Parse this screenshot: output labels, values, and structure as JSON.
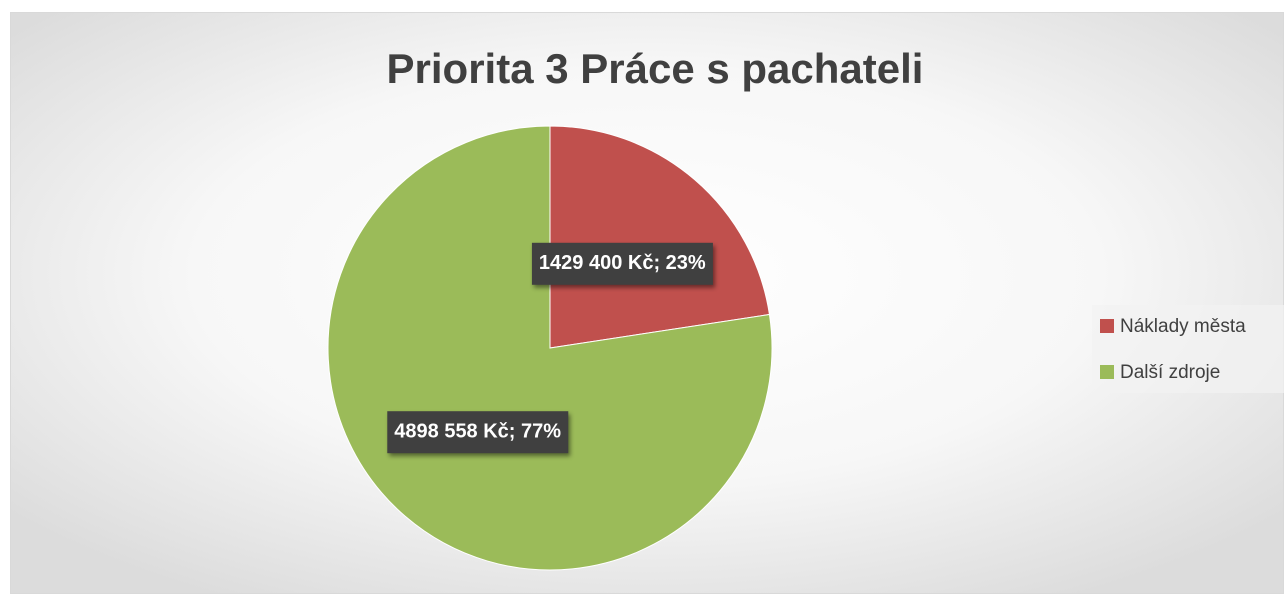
{
  "chart_data": {
    "type": "pie",
    "title": "Priorita 3 Práce s pachateli",
    "categories": [
      "Náklady města",
      "Další zdroje"
    ],
    "values": [
      1429400,
      4898558
    ],
    "value_labels": [
      "1429 400 Kč; 23%",
      "4898 558 Kč; 77%"
    ],
    "colors": [
      "#c0504d",
      "#9bbb59"
    ],
    "legend": "right"
  }
}
